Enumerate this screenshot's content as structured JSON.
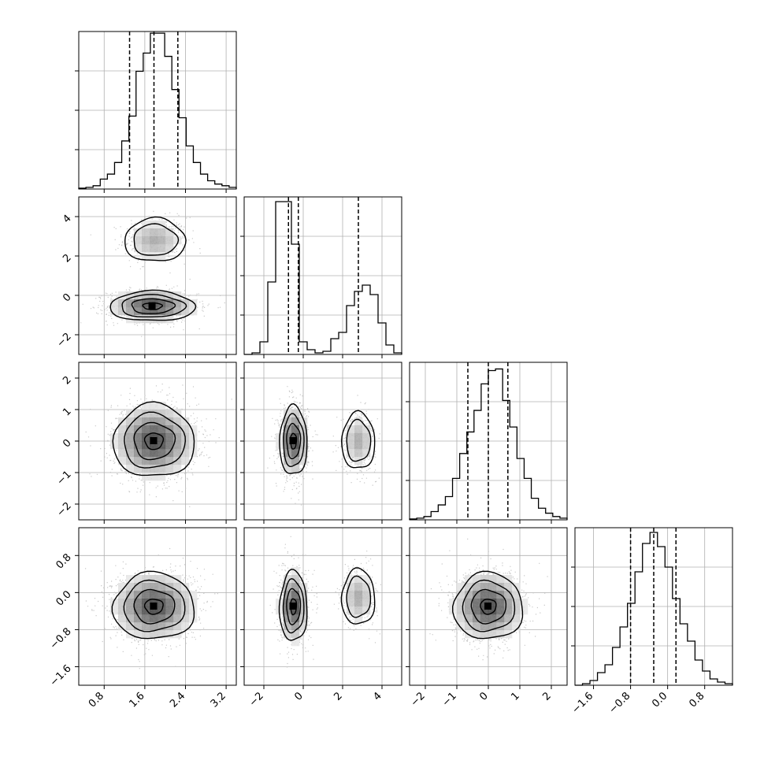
{
  "chart_data": {
    "type": "corner",
    "parameters": [
      {
        "range": [
          0.3,
          3.4
        ],
        "ticks": [
          0.8,
          1.6,
          2.4,
          3.2
        ],
        "tick_labels": [
          "0.8",
          "1.6",
          "2.4",
          "3.2"
        ],
        "quantiles": [
          1.3,
          1.78,
          2.25
        ],
        "hist_max": 0.95,
        "hist_bins": [
          0.005,
          0.01,
          0.02,
          0.06,
          0.09,
          0.16,
          0.29,
          0.44,
          0.71,
          0.82,
          0.94,
          0.94,
          0.8,
          0.6,
          0.43,
          0.26,
          0.16,
          0.09,
          0.05,
          0.03,
          0.02,
          0.01
        ]
      },
      {
        "range": [
          -3.0,
          5.0
        ],
        "ticks": [
          -2,
          0,
          2,
          4
        ],
        "tick_labels": [
          "−2",
          "0",
          "2",
          "4"
        ],
        "quantiles": [
          -0.75,
          -0.25,
          2.8
        ],
        "hist_max": 1.0,
        "hist_bins": [
          0.0,
          0.01,
          0.08,
          0.46,
          0.97,
          0.97,
          0.7,
          0.08,
          0.03,
          0.01,
          0.02,
          0.1,
          0.14,
          0.31,
          0.4,
          0.44,
          0.38,
          0.2,
          0.06,
          0.01
        ]
      },
      {
        "range": [
          -2.5,
          2.5
        ],
        "ticks": [
          -2,
          -1,
          0,
          1,
          2
        ],
        "tick_labels": [
          "−2",
          "−1",
          "0",
          "1",
          "2"
        ],
        "quantiles": [
          -0.65,
          0.0,
          0.62
        ],
        "hist_max": 0.95,
        "hist_bins": [
          0.005,
          0.01,
          0.02,
          0.05,
          0.09,
          0.14,
          0.25,
          0.4,
          0.53,
          0.66,
          0.82,
          0.9,
          0.91,
          0.72,
          0.56,
          0.37,
          0.25,
          0.13,
          0.07,
          0.04,
          0.02,
          0.01
        ]
      },
      {
        "range": [
          -2.0,
          1.4
        ],
        "ticks": [
          -1.6,
          -0.8,
          0.0,
          0.8
        ],
        "tick_labels": [
          "−1.6",
          "−0.8",
          "0.0",
          "0.8"
        ],
        "quantiles": [
          -0.8,
          -0.3,
          0.18
        ],
        "hist_max": 1.0,
        "hist_bins": [
          0.0,
          0.01,
          0.03,
          0.08,
          0.13,
          0.24,
          0.37,
          0.52,
          0.72,
          0.9,
          0.97,
          0.88,
          0.75,
          0.55,
          0.39,
          0.28,
          0.16,
          0.09,
          0.04,
          0.02,
          0.01
        ]
      }
    ],
    "yaxis_ticks": {
      "row1": {
        "ticks": [
          -2,
          0,
          2,
          4
        ],
        "labels": [
          "−2",
          "0",
          "2",
          "4"
        ]
      },
      "row2": {
        "ticks": [
          -2,
          -1,
          0,
          1,
          2
        ],
        "labels": [
          "−2",
          "−1",
          "0",
          "1",
          "2"
        ]
      },
      "row3": {
        "ticks": [
          -1.6,
          -0.8,
          0.0,
          0.8
        ],
        "labels": [
          "−1.6",
          "−0.8",
          "0.0",
          "0.8"
        ]
      }
    },
    "pairs": [
      {
        "i": 0,
        "j": 1,
        "blobs": [
          {
            "cx": 1.8,
            "cy": 2.8,
            "sx": 0.3,
            "sy": 0.55,
            "w": 0.45
          },
          {
            "cx": 1.75,
            "cy": -0.55,
            "sx": 0.42,
            "sy": 0.38,
            "w": 1.0
          }
        ]
      },
      {
        "i": 0,
        "j": 2,
        "blobs": [
          {
            "cx": 1.78,
            "cy": 0.0,
            "sx": 0.4,
            "sy": 0.58,
            "w": 1.0
          }
        ]
      },
      {
        "i": 1,
        "j": 2,
        "blobs": [
          {
            "cx": -0.5,
            "cy": 0.0,
            "sx": 0.35,
            "sy": 0.55,
            "w": 1.0
          },
          {
            "cx": 2.8,
            "cy": 0.0,
            "sx": 0.42,
            "sy": 0.45,
            "w": 0.45
          }
        ]
      },
      {
        "i": 0,
        "j": 3,
        "blobs": [
          {
            "cx": 1.78,
            "cy": -0.3,
            "sx": 0.4,
            "sy": 0.36,
            "w": 1.0
          }
        ]
      },
      {
        "i": 1,
        "j": 3,
        "blobs": [
          {
            "cx": -0.5,
            "cy": -0.3,
            "sx": 0.35,
            "sy": 0.38,
            "w": 1.0
          },
          {
            "cx": 2.8,
            "cy": -0.1,
            "sx": 0.42,
            "sy": 0.3,
            "w": 0.45
          }
        ]
      },
      {
        "i": 2,
        "j": 3,
        "blobs": [
          {
            "cx": 0.0,
            "cy": -0.3,
            "sx": 0.55,
            "sy": 0.36,
            "w": 1.0
          }
        ]
      }
    ],
    "title": "",
    "grid": true,
    "colors": {
      "line": "#000000",
      "grid": "#b0b0b0",
      "scatter": "#c8c8c8"
    }
  }
}
